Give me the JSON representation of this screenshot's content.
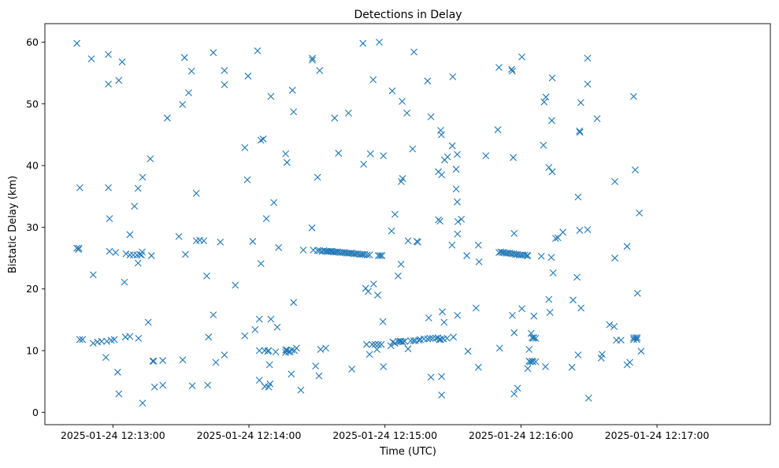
{
  "chart_data": {
    "type": "scatter",
    "title": "Detections in Delay",
    "xlabel": "Time (UTC)",
    "ylabel": "Bistatic Delay (km)",
    "marker": "x",
    "grid": false,
    "color": "#1f77b4",
    "x_unit": "seconds after 2025-01-24 12:12:00",
    "xlim": [
      0,
      320
    ],
    "ylim": [
      -2,
      63
    ],
    "x_ticks": [
      {
        "value": 30,
        "label": "2025-01-24 12:13:00"
      },
      {
        "value": 90,
        "label": "2025-01-24 12:14:00"
      },
      {
        "value": 150,
        "label": "2025-01-24 12:15:00"
      },
      {
        "value": 210,
        "label": "2025-01-24 12:16:00"
      },
      {
        "value": 270,
        "label": "2025-01-24 12:17:00"
      }
    ],
    "y_ticks": [
      {
        "value": 0,
        "label": "0"
      },
      {
        "value": 10,
        "label": "10"
      },
      {
        "value": 20,
        "label": "20"
      },
      {
        "value": 30,
        "label": "30"
      },
      {
        "value": 40,
        "label": "40"
      },
      {
        "value": 50,
        "label": "50"
      },
      {
        "value": 60,
        "label": "60"
      }
    ],
    "points": [
      [
        14.1,
        59.8
      ],
      [
        14.1,
        26.6
      ],
      [
        14.8,
        26.4
      ],
      [
        15.0,
        26.6
      ],
      [
        15.4,
        36.4
      ],
      [
        15.4,
        11.8
      ],
      [
        16.6,
        11.8
      ],
      [
        20.5,
        57.3
      ],
      [
        21.3,
        22.3
      ],
      [
        21.3,
        11.2
      ],
      [
        23.2,
        11.4
      ],
      [
        25.0,
        11.5
      ],
      [
        26.9,
        8.9
      ],
      [
        27.3,
        11.5
      ],
      [
        28.0,
        36.4
      ],
      [
        28.0,
        58.0
      ],
      [
        28.0,
        53.2
      ],
      [
        28.5,
        31.4
      ],
      [
        28.5,
        26.1
      ],
      [
        29.2,
        11.7
      ],
      [
        30.6,
        11.8
      ],
      [
        31.2,
        25.9
      ],
      [
        32.1,
        6.5
      ],
      [
        32.6,
        3.0
      ],
      [
        32.6,
        53.8
      ],
      [
        34.1,
        56.8
      ],
      [
        35.1,
        21.1
      ],
      [
        35.5,
        12.2
      ],
      [
        35.8,
        25.7
      ],
      [
        37.5,
        28.8
      ],
      [
        37.5,
        12.3
      ],
      [
        37.5,
        25.5
      ],
      [
        39.0,
        25.5
      ],
      [
        39.5,
        33.4
      ],
      [
        40.6,
        25.5
      ],
      [
        41.1,
        24.2
      ],
      [
        41.1,
        36.3
      ],
      [
        41.3,
        12.0
      ],
      [
        41.9,
        25.6
      ],
      [
        42.6,
        25.5
      ],
      [
        42.9,
        26.0
      ],
      [
        43.1,
        38.1
      ],
      [
        43.1,
        1.5
      ],
      [
        45.6,
        14.6
      ],
      [
        46.5,
        41.1
      ],
      [
        47.0,
        25.4
      ],
      [
        47.6,
        8.3
      ],
      [
        48.0,
        8.3
      ],
      [
        48.4,
        4.1
      ],
      [
        52.0,
        8.4
      ],
      [
        52.0,
        4.4
      ],
      [
        54.0,
        47.7
      ],
      [
        59.1,
        28.5
      ],
      [
        60.7,
        49.9
      ],
      [
        60.8,
        8.5
      ],
      [
        61.6,
        57.5
      ],
      [
        62.0,
        25.6
      ],
      [
        63.4,
        51.8
      ],
      [
        64.7,
        55.3
      ],
      [
        65.0,
        4.3
      ],
      [
        66.8,
        35.5
      ],
      [
        66.8,
        27.8
      ],
      [
        68.3,
        27.9
      ],
      [
        70.1,
        27.8
      ],
      [
        71.4,
        22.1
      ],
      [
        71.8,
        4.4
      ],
      [
        72.2,
        12.2
      ],
      [
        74.3,
        58.3
      ],
      [
        74.3,
        15.8
      ],
      [
        75.4,
        8.1
      ],
      [
        77.4,
        27.6
      ],
      [
        79.2,
        9.3
      ],
      [
        79.2,
        55.4
      ],
      [
        79.2,
        53.1
      ],
      [
        84.0,
        20.6
      ],
      [
        88.2,
        12.4
      ],
      [
        88.2,
        42.9
      ],
      [
        89.3,
        37.7
      ],
      [
        89.6,
        54.5
      ],
      [
        91.7,
        27.7
      ],
      [
        92.7,
        13.4
      ],
      [
        93.8,
        58.6
      ],
      [
        94.6,
        15.1
      ],
      [
        94.6,
        10.0
      ],
      [
        94.6,
        5.2
      ],
      [
        95.3,
        44.1
      ],
      [
        95.3,
        24.1
      ],
      [
        96.3,
        44.3
      ],
      [
        96.9,
        10.0
      ],
      [
        97.0,
        4.2
      ],
      [
        97.7,
        31.4
      ],
      [
        98.3,
        9.9
      ],
      [
        98.7,
        10.0
      ],
      [
        98.7,
        4.1
      ],
      [
        99.1,
        7.7
      ],
      [
        99.3,
        4.6
      ],
      [
        99.7,
        51.2
      ],
      [
        99.7,
        15.1
      ],
      [
        101.0,
        34.0
      ],
      [
        101.8,
        9.8
      ],
      [
        102.5,
        13.8
      ],
      [
        103.1,
        26.7
      ],
      [
        106.2,
        41.9
      ],
      [
        106.2,
        10.1
      ],
      [
        106.2,
        9.7
      ],
      [
        106.8,
        40.5
      ],
      [
        106.8,
        10.1
      ],
      [
        107.5,
        9.8
      ],
      [
        108.2,
        9.8
      ],
      [
        108.7,
        6.2
      ],
      [
        108.9,
        10.1
      ],
      [
        109.2,
        52.2
      ],
      [
        109.7,
        48.7
      ],
      [
        109.7,
        17.8
      ],
      [
        110.1,
        10.0
      ],
      [
        111.0,
        10.4
      ],
      [
        112.9,
        3.6
      ],
      [
        114.0,
        26.3
      ],
      [
        117.8,
        29.9
      ],
      [
        118.0,
        57.4
      ],
      [
        118.0,
        57.1
      ],
      [
        118.4,
        26.3
      ],
      [
        119.4,
        7.5
      ],
      [
        120.3,
        26.2
      ],
      [
        120.3,
        38.1
      ],
      [
        120.9,
        5.9
      ],
      [
        121.2,
        55.4
      ],
      [
        121.2,
        26.2
      ],
      [
        121.6,
        10.2
      ],
      [
        122.2,
        26.1
      ],
      [
        123.0,
        26.2
      ],
      [
        123.8,
        26.1
      ],
      [
        123.9,
        10.4
      ],
      [
        124.5,
        26.1
      ],
      [
        125.2,
        26.1
      ],
      [
        126.0,
        26.1
      ],
      [
        126.5,
        26.1
      ],
      [
        127.2,
        26.0
      ],
      [
        127.8,
        47.7
      ],
      [
        127.9,
        26.0
      ],
      [
        128.6,
        26.0
      ],
      [
        129.3,
        26.0
      ],
      [
        129.5,
        42.0
      ],
      [
        130.1,
        25.9
      ],
      [
        130.9,
        25.9
      ],
      [
        131.7,
        25.9
      ],
      [
        132.4,
        25.9
      ],
      [
        133.2,
        25.8
      ],
      [
        133.9,
        48.5
      ],
      [
        134.0,
        25.8
      ],
      [
        134.8,
        25.8
      ],
      [
        135.4,
        7.0
      ],
      [
        135.6,
        25.8
      ],
      [
        136.4,
        25.7
      ],
      [
        137.2,
        25.7
      ],
      [
        138.0,
        25.7
      ],
      [
        138.8,
        25.6
      ],
      [
        139.6,
        25.6
      ],
      [
        140.3,
        59.8
      ],
      [
        140.3,
        25.6
      ],
      [
        140.6,
        40.2
      ],
      [
        141.1,
        25.6
      ],
      [
        141.5,
        20.1
      ],
      [
        141.9,
        11.0
      ],
      [
        142.2,
        25.5
      ],
      [
        142.6,
        19.6
      ],
      [
        143.2,
        25.5
      ],
      [
        143.2,
        9.4
      ],
      [
        143.6,
        41.9
      ],
      [
        144.4,
        11.0
      ],
      [
        144.8,
        53.9
      ],
      [
        145.0,
        20.8
      ],
      [
        145.7,
        11.0
      ],
      [
        146.5,
        10.2
      ],
      [
        146.8,
        19.0
      ],
      [
        147.1,
        11.0
      ],
      [
        147.1,
        25.4
      ],
      [
        147.5,
        60.0
      ],
      [
        147.9,
        25.4
      ],
      [
        148.4,
        11.0
      ],
      [
        148.7,
        25.4
      ],
      [
        149.1,
        14.7
      ],
      [
        149.3,
        41.6
      ],
      [
        149.3,
        7.4
      ],
      [
        152.6,
        10.8
      ],
      [
        152.9,
        29.4
      ],
      [
        153.2,
        52.1
      ],
      [
        153.5,
        11.4
      ],
      [
        154.4,
        32.1
      ],
      [
        154.4,
        11.2
      ],
      [
        155.8,
        22.1
      ],
      [
        155.8,
        11.5
      ],
      [
        156.6,
        11.5
      ],
      [
        157.1,
        24.0
      ],
      [
        157.1,
        11.5
      ],
      [
        157.2,
        37.4
      ],
      [
        157.6,
        50.4
      ],
      [
        157.8,
        37.9
      ],
      [
        157.8,
        11.4
      ],
      [
        158.7,
        11.5
      ],
      [
        159.7,
        48.5
      ],
      [
        160.2,
        10.3
      ],
      [
        160.2,
        27.8
      ],
      [
        161.4,
        11.6
      ],
      [
        162.2,
        42.7
      ],
      [
        162.6,
        11.6
      ],
      [
        162.8,
        58.4
      ],
      [
        163.4,
        11.6
      ],
      [
        164.1,
        27.7
      ],
      [
        164.5,
        27.6
      ],
      [
        164.9,
        11.7
      ],
      [
        165.6,
        11.8
      ],
      [
        167.2,
        11.9
      ],
      [
        168.8,
        53.7
      ],
      [
        168.8,
        11.9
      ],
      [
        169.3,
        15.3
      ],
      [
        169.9,
        12.0
      ],
      [
        170.3,
        47.9
      ],
      [
        170.3,
        5.7
      ],
      [
        171.1,
        12.0
      ],
      [
        172.5,
        12.0
      ],
      [
        173.4,
        12.1
      ],
      [
        173.6,
        39.0
      ],
      [
        173.6,
        31.2
      ],
      [
        174.0,
        11.8
      ],
      [
        174.3,
        31.0
      ],
      [
        174.6,
        11.8
      ],
      [
        174.6,
        45.7
      ],
      [
        174.9,
        45.0
      ],
      [
        175.0,
        38.5
      ],
      [
        175.0,
        2.8
      ],
      [
        175.0,
        5.8
      ],
      [
        175.3,
        16.3
      ],
      [
        175.8,
        11.9
      ],
      [
        176.1,
        14.6
      ],
      [
        176.3,
        40.9
      ],
      [
        177.4,
        12.0
      ],
      [
        177.6,
        41.4
      ],
      [
        179.6,
        27.1
      ],
      [
        179.7,
        43.2
      ],
      [
        179.9,
        54.4
      ],
      [
        180.2,
        12.2
      ],
      [
        181.4,
        39.4
      ],
      [
        181.4,
        36.2
      ],
      [
        181.9,
        41.8
      ],
      [
        181.9,
        34.1
      ],
      [
        182.0,
        28.9
      ],
      [
        182.0,
        15.7
      ],
      [
        182.2,
        30.9
      ],
      [
        183.7,
        31.3
      ],
      [
        186.1,
        25.4
      ],
      [
        186.6,
        9.9
      ],
      [
        190.2,
        16.9
      ],
      [
        191.2,
        27.1
      ],
      [
        191.2,
        7.3
      ],
      [
        191.5,
        24.4
      ],
      [
        194.5,
        41.6
      ],
      [
        199.8,
        45.8
      ],
      [
        200.3,
        55.9
      ],
      [
        200.3,
        25.9
      ],
      [
        200.6,
        10.4
      ],
      [
        201.1,
        26.0
      ],
      [
        201.8,
        25.9
      ],
      [
        202.5,
        25.9
      ],
      [
        203.4,
        25.8
      ],
      [
        204.2,
        25.8
      ],
      [
        205.1,
        25.8
      ],
      [
        205.9,
        25.7
      ],
      [
        205.9,
        55.6
      ],
      [
        206.2,
        15.7
      ],
      [
        206.2,
        55.3
      ],
      [
        206.6,
        41.3
      ],
      [
        206.8,
        25.7
      ],
      [
        207.0,
        29.0
      ],
      [
        207.0,
        3.0
      ],
      [
        207.0,
        12.9
      ],
      [
        207.6,
        25.6
      ],
      [
        208.4,
        25.6
      ],
      [
        208.5,
        3.9
      ],
      [
        209.3,
        25.5
      ],
      [
        210.1,
        25.5
      ],
      [
        210.4,
        16.8
      ],
      [
        210.4,
        57.6
      ],
      [
        210.9,
        25.5
      ],
      [
        211.8,
        25.5
      ],
      [
        212.7,
        25.4
      ],
      [
        213.0,
        7.1
      ],
      [
        213.0,
        25.4
      ],
      [
        213.6,
        10.2
      ],
      [
        213.6,
        8.3
      ],
      [
        214.1,
        8.2
      ],
      [
        214.5,
        12.8
      ],
      [
        214.9,
        12.1
      ],
      [
        214.9,
        8.3
      ],
      [
        215.3,
        8.2
      ],
      [
        215.3,
        12.0
      ],
      [
        215.7,
        12.1
      ],
      [
        215.7,
        15.6
      ],
      [
        216.5,
        12.0
      ],
      [
        216.5,
        8.2
      ],
      [
        219.0,
        25.3
      ],
      [
        219.9,
        43.3
      ],
      [
        220.2,
        50.3
      ],
      [
        220.8,
        7.4
      ],
      [
        221.0,
        51.1
      ],
      [
        222.3,
        18.3
      ],
      [
        222.3,
        39.7
      ],
      [
        222.8,
        16.2
      ],
      [
        223.4,
        25.1
      ],
      [
        223.6,
        47.3
      ],
      [
        223.8,
        54.2
      ],
      [
        223.8,
        39.0
      ],
      [
        224.2,
        22.6
      ],
      [
        225.3,
        28.2
      ],
      [
        226.3,
        28.3
      ],
      [
        228.5,
        29.2
      ],
      [
        232.5,
        7.3
      ],
      [
        233.0,
        18.2
      ],
      [
        234.7,
        21.9
      ],
      [
        235.2,
        34.9
      ],
      [
        235.2,
        9.3
      ],
      [
        235.8,
        45.6
      ],
      [
        235.9,
        29.5
      ],
      [
        236.0,
        45.4
      ],
      [
        236.4,
        50.2
      ],
      [
        236.5,
        16.9
      ],
      [
        239.4,
        29.6
      ],
      [
        239.4,
        57.4
      ],
      [
        239.4,
        53.2
      ],
      [
        239.8,
        2.3
      ],
      [
        243.6,
        47.6
      ],
      [
        245.4,
        8.8
      ],
      [
        245.8,
        9.4
      ],
      [
        249.1,
        14.2
      ],
      [
        251.1,
        13.9
      ],
      [
        251.4,
        37.4
      ],
      [
        251.4,
        25.0
      ],
      [
        252.1,
        11.7
      ],
      [
        254.1,
        11.7
      ],
      [
        256.8,
        26.9
      ],
      [
        256.8,
        7.7
      ],
      [
        258.0,
        8.1
      ],
      [
        259.7,
        51.2
      ],
      [
        259.7,
        12.1
      ],
      [
        259.7,
        11.8
      ],
      [
        260.4,
        39.3
      ],
      [
        260.6,
        12.1
      ],
      [
        261.1,
        11.8
      ],
      [
        261.3,
        12.1
      ],
      [
        261.4,
        19.3
      ],
      [
        262.2,
        32.3
      ],
      [
        263.0,
        9.9
      ]
    ]
  }
}
